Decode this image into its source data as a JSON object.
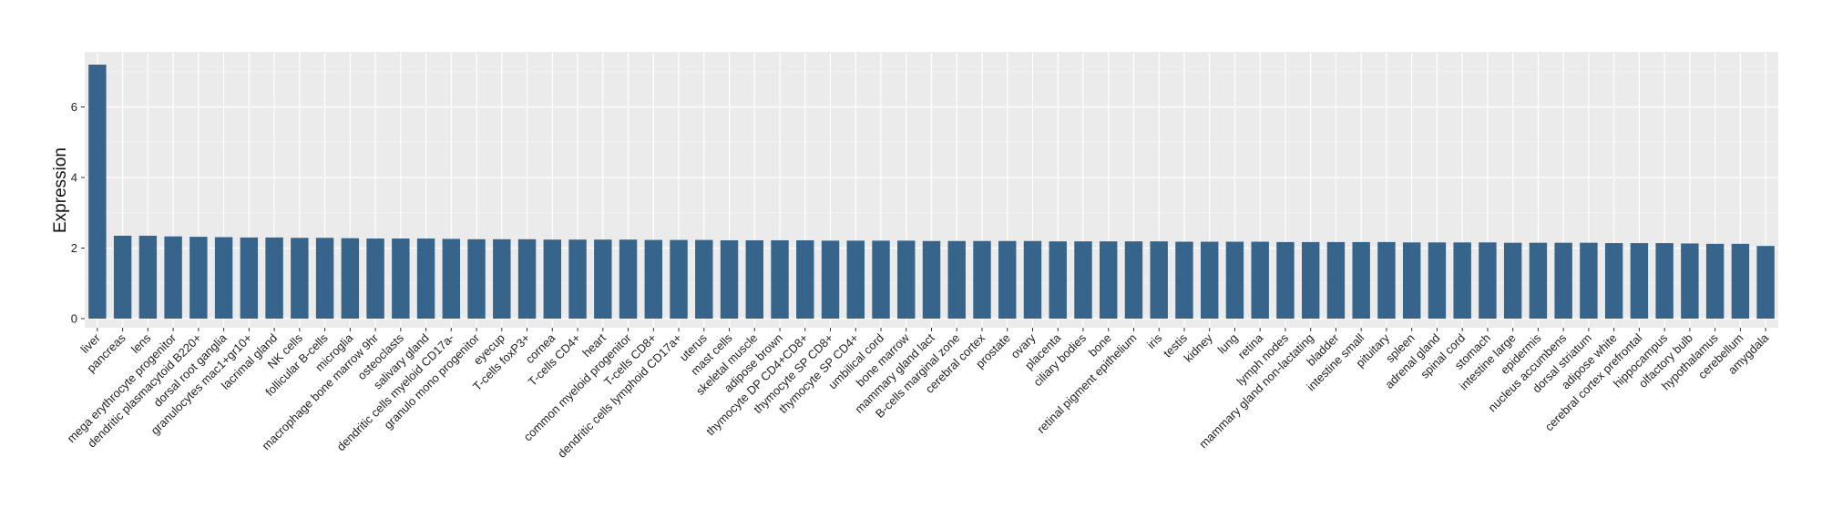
{
  "chart_data": {
    "type": "bar",
    "title": "",
    "xlabel": "",
    "ylabel": "Expression",
    "ylim": [
      0,
      7.5
    ],
    "yticks": [
      0,
      2,
      4,
      6
    ],
    "grid": true,
    "colors": {
      "bar": "#36648b",
      "panel": "#ebebeb",
      "grid_major": "#ffffff",
      "grid_minor": "#f3f3f3"
    },
    "categories": [
      "liver",
      "pancreas",
      "lens",
      "mega erythrocyte progenitor",
      "dendritic plasmacytoid B220+",
      "dorsal root ganglia",
      "granulocytes mac1+gr10+",
      "lacrimal gland",
      "NK cells",
      "follicular B-cells",
      "microglia",
      "macrophage bone marrow 9hr",
      "osteoclasts",
      "salivary gland",
      "dendritic cells myeloid CD17a-",
      "granulo mono progenitor",
      "eyecup",
      "T-cells foxP3+",
      "cornea",
      "T-cells CD4+",
      "heart",
      "common myeloid progenitor",
      "T-cells CD8+",
      "dendritic cells lymphoid CD17a+",
      "uterus",
      "mast cells",
      "skeletal muscle",
      "adipose brown",
      "thymocyte DP CD4+CD8+",
      "thymocyte SP CD8+",
      "thymocyte SP CD4+",
      "umbilical cord",
      "bone marrow",
      "mammary gland  lact",
      "B-cells marginal zone",
      "cerebral cortex",
      "prostate",
      "ovary",
      "placenta",
      "ciliary bodies",
      "bone",
      "retinal pigment epithelium",
      "iris",
      "testis",
      "kidney",
      "lung",
      "retina",
      "lymph nodes",
      "mammary gland non-lactating",
      "bladder",
      "intestine small",
      "pituitary",
      "spleen",
      "adrenal gland",
      "spinal cord",
      "stomach",
      "intestine large",
      "epidermis",
      "nucleus accumbens",
      "dorsal striatum",
      "adipose white",
      "cerebral cortex prefrontal",
      "hippocampus",
      "olfactory bulb",
      "hypothalamus",
      "cerebellum",
      "amygdala"
    ],
    "values": [
      7.2,
      2.35,
      2.35,
      2.33,
      2.32,
      2.31,
      2.3,
      2.3,
      2.29,
      2.29,
      2.28,
      2.27,
      2.27,
      2.27,
      2.26,
      2.25,
      2.25,
      2.25,
      2.24,
      2.24,
      2.24,
      2.24,
      2.23,
      2.23,
      2.23,
      2.22,
      2.22,
      2.22,
      2.22,
      2.21,
      2.21,
      2.21,
      2.21,
      2.2,
      2.2,
      2.2,
      2.2,
      2.2,
      2.19,
      2.19,
      2.19,
      2.19,
      2.19,
      2.18,
      2.18,
      2.18,
      2.18,
      2.17,
      2.17,
      2.17,
      2.17,
      2.17,
      2.16,
      2.16,
      2.16,
      2.16,
      2.15,
      2.15,
      2.15,
      2.15,
      2.14,
      2.14,
      2.14,
      2.13,
      2.12,
      2.12,
      2.06
    ]
  }
}
